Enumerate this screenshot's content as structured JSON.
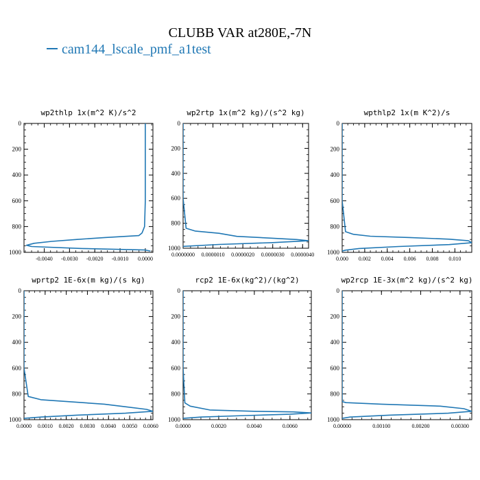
{
  "figure": {
    "title": "CLUBB VAR at280E,-7N",
    "legend_label": "cam144_lscale_pmf_a1test",
    "line_color": "#1f77b4",
    "text_color": "#000000"
  },
  "chart_data": [
    {
      "type": "line",
      "title": "wp2thlp   1x(m^2 K)/s^2",
      "xlim": [
        -0.0048,
        0.0003
      ],
      "xticks": [
        -0.004,
        -0.003,
        -0.002,
        -0.001,
        0.0
      ],
      "xtick_labels": [
        "-0.0040",
        "-0.0030",
        "-0.0020",
        "-0.0010",
        "0.0000"
      ],
      "ylim": [
        1000,
        0
      ],
      "yticks": [
        0,
        200,
        400,
        600,
        800,
        1000
      ],
      "ytick_labels": [
        "0",
        "200",
        "400",
        "600",
        "800",
        "1000"
      ],
      "series": [
        {
          "x": [
            0.0,
            0.0,
            0.0,
            -3e-05,
            -0.00013,
            -0.00026,
            -0.0016,
            -0.0027,
            -0.0037,
            -0.0044,
            -0.0047,
            -0.0045,
            -0.0025,
            0.0,
            0.0002
          ],
          "y": [
            0,
            300,
            600,
            800,
            850,
            870,
            885,
            900,
            915,
            930,
            945,
            955,
            970,
            982,
            990
          ]
        }
      ]
    },
    {
      "type": "line",
      "title": "wp2rtp   1x(m^2 kg)/(s^2 kg)",
      "xlim": [
        0.0,
        4.2e-06
      ],
      "xticks": [
        0.0,
        1e-06,
        2e-06,
        3e-06,
        4e-06
      ],
      "xtick_labels": [
        "0.0000000",
        "0.0000010",
        "0.0000020",
        "0.0000030",
        "0.0000040"
      ],
      "ylim": [
        1000,
        0
      ],
      "yticks": [
        0,
        200,
        400,
        600,
        800,
        1000
      ],
      "ytick_labels": [
        "0",
        "200",
        "400",
        "600",
        "800",
        "1000"
      ],
      "series": [
        {
          "x": [
            0.0,
            0.0,
            1e-07,
            4e-07,
            1.2e-06,
            1.8e-06,
            3e-06,
            3.8e-06,
            4.2e-06,
            3e-06,
            1.2e-06,
            0.0
          ],
          "y": [
            0,
            600,
            840,
            862,
            880,
            905,
            920,
            930,
            940,
            955,
            970,
            985
          ]
        }
      ]
    },
    {
      "type": "line",
      "title": "wpthlp2   1x(m K^2)/s",
      "xlim": [
        0.0,
        0.0115
      ],
      "xticks": [
        0.0,
        0.002,
        0.004,
        0.006,
        0.008,
        0.01
      ],
      "xtick_labels": [
        "0.000",
        "0.002",
        "0.004",
        "0.006",
        "0.008",
        "0.010"
      ],
      "ylim": [
        1000,
        0
      ],
      "yticks": [
        0,
        200,
        400,
        600,
        800,
        1000
      ],
      "ytick_labels": [
        "0",
        "200",
        "400",
        "600",
        "800",
        "1000"
      ],
      "series": [
        {
          "x": [
            0.0,
            0.0,
            0.0003,
            0.001,
            0.0025,
            0.006,
            0.0095,
            0.0112,
            0.0115,
            0.0095,
            0.005,
            0.0015,
            0.0003,
            0.0
          ],
          "y": [
            0,
            600,
            840,
            860,
            875,
            885,
            898,
            910,
            925,
            940,
            955,
            970,
            983,
            990
          ]
        }
      ]
    },
    {
      "type": "line",
      "title": "wprtp2   1E-6x(m kg)/(s kg)",
      "xlim": [
        0.0,
        0.0061
      ],
      "xticks": [
        0.0,
        0.001,
        0.002,
        0.003,
        0.004,
        0.005,
        0.006
      ],
      "xtick_labels": [
        "0.0000",
        "0.0010",
        "0.0020",
        "0.0030",
        "0.0040",
        "0.0050",
        "0.0060"
      ],
      "ylim": [
        1000,
        0
      ],
      "yticks": [
        0,
        200,
        400,
        600,
        800,
        1000
      ],
      "ytick_labels": [
        "0",
        "200",
        "400",
        "600",
        "800",
        "1000"
      ],
      "series": [
        {
          "x": [
            0.0,
            0.0,
            0.0002,
            0.0008,
            0.0025,
            0.0038,
            0.0048,
            0.0058,
            0.0061,
            0.0048,
            0.0025,
            0.0008,
            0.0
          ],
          "y": [
            0,
            600,
            820,
            845,
            865,
            880,
            900,
            920,
            935,
            950,
            965,
            980,
            990
          ]
        }
      ]
    },
    {
      "type": "line",
      "title": "rcp2   1E-6x(kg^2)/(kg^2)",
      "xlim": [
        0.0,
        0.0072
      ],
      "xticks": [
        0.0,
        0.002,
        0.004,
        0.006
      ],
      "xtick_labels": [
        "0.0000",
        "0.0020",
        "0.0040",
        "0.0060"
      ],
      "ylim": [
        1000,
        0
      ],
      "yticks": [
        0,
        200,
        400,
        600,
        800,
        1000
      ],
      "ytick_labels": [
        "0",
        "200",
        "400",
        "600",
        "800",
        "1000"
      ],
      "series": [
        {
          "x": [
            0.0,
            0.0,
            0.0001,
            0.0004,
            0.0015,
            0.004,
            0.0062,
            0.0072,
            0.006,
            0.0035,
            0.001,
            0.0
          ],
          "y": [
            0,
            600,
            870,
            895,
            925,
            935,
            940,
            948,
            958,
            968,
            980,
            990
          ]
        }
      ]
    },
    {
      "type": "line",
      "title": "wp2rcp   1E-3x(m^2 kg)/(s^2 kg)",
      "xlim": [
        0.0,
        0.0033
      ],
      "xticks": [
        0.0,
        0.001,
        0.002,
        0.003
      ],
      "xtick_labels": [
        "0.00000",
        "0.00100",
        "0.00200",
        "0.00300"
      ],
      "ylim": [
        1000,
        0
      ],
      "yticks": [
        0,
        200,
        400,
        600,
        800,
        1000
      ],
      "ytick_labels": [
        "0",
        "200",
        "400",
        "600",
        "800",
        "1000"
      ],
      "series": [
        {
          "x": [
            0.0,
            0.0,
            0.0,
            0.0001,
            0.001,
            0.0025,
            0.0031,
            0.0033,
            0.0027,
            0.0012,
            0.0002,
            0.0
          ],
          "y": [
            0,
            600,
            860,
            868,
            880,
            895,
            915,
            935,
            950,
            965,
            980,
            990
          ]
        }
      ]
    }
  ]
}
